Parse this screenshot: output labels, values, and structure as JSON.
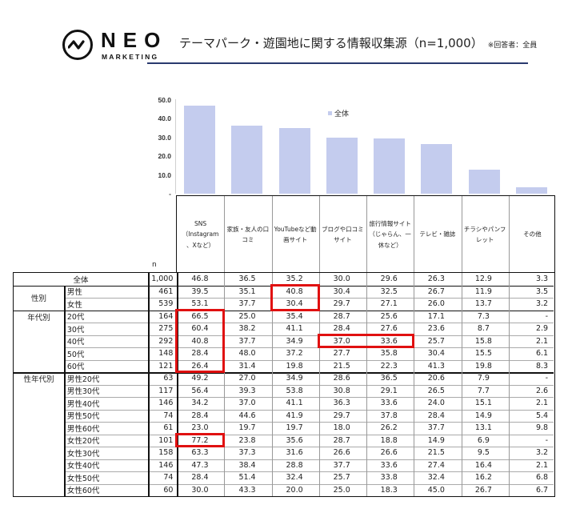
{
  "header": {
    "logo_text": "NEO",
    "logo_subtext": "MARKETING",
    "title": "テーマパーク・遊園地に関する情報収集源（n=1,000）",
    "note": "※回答者：全員"
  },
  "chart_data": {
    "type": "bar",
    "title": "テーマパーク・遊園地に関する情報収集源（n=1,000）",
    "categories": [
      "SNS（Instagram、Xなど）",
      "家族・友人の口コミ",
      "YouTubeなど動画サイト",
      "ブログや口コミサイト",
      "旅行情報サイト（じゃらん、一休など）",
      "テレビ・雑誌",
      "チラシやパンフレット",
      "その他"
    ],
    "series": [
      {
        "name": "全体",
        "values": [
          46.8,
          36.5,
          35.2,
          30.0,
          29.6,
          26.3,
          12.9,
          3.3
        ]
      }
    ],
    "ylim": [
      0,
      50
    ],
    "yticks": [
      "50.0",
      "40.0",
      "30.0",
      "20.0",
      "10.0",
      "-"
    ],
    "legend": "全体",
    "xlabel": "",
    "ylabel": "",
    "grid": false,
    "legend_position": "top-center",
    "table": {
      "columns": [
        "n",
        "SNS（Instagram、Xなど）",
        "家族・友人の口コミ",
        "YouTubeなど動画サイト",
        "ブログや口コミサイト",
        "旅行情報サイト（じゃらん、一休など）",
        "テレビ・雑誌",
        "チラシやパンフレット",
        "その他"
      ],
      "rows": [
        {
          "group": "全体",
          "label": "全体",
          "n": "1,000",
          "values": [
            "46.8",
            "36.5",
            "35.2",
            "30.0",
            "29.6",
            "26.3",
            "12.9",
            "3.3"
          ]
        },
        {
          "group": "性別",
          "label": "男性",
          "n": "461",
          "values": [
            "39.5",
            "35.1",
            "40.8",
            "30.4",
            "32.5",
            "26.7",
            "11.9",
            "3.5"
          ]
        },
        {
          "group": "性別",
          "label": "女性",
          "n": "539",
          "values": [
            "53.1",
            "37.7",
            "30.4",
            "29.7",
            "27.1",
            "26.0",
            "13.7",
            "3.2"
          ]
        },
        {
          "group": "年代別",
          "label": "20代",
          "n": "164",
          "values": [
            "66.5",
            "25.0",
            "35.4",
            "28.7",
            "25.6",
            "17.1",
            "7.3",
            "-"
          ]
        },
        {
          "group": "年代別",
          "label": "30代",
          "n": "275",
          "values": [
            "60.4",
            "38.2",
            "41.1",
            "28.4",
            "27.6",
            "23.6",
            "8.7",
            "2.9"
          ]
        },
        {
          "group": "年代別",
          "label": "40代",
          "n": "292",
          "values": [
            "40.8",
            "37.7",
            "34.9",
            "37.0",
            "33.6",
            "25.7",
            "15.8",
            "2.1"
          ]
        },
        {
          "group": "年代別",
          "label": "50代",
          "n": "148",
          "values": [
            "28.4",
            "48.0",
            "37.2",
            "27.7",
            "35.8",
            "30.4",
            "15.5",
            "6.1"
          ]
        },
        {
          "group": "年代別",
          "label": "60代",
          "n": "121",
          "values": [
            "26.4",
            "31.4",
            "19.8",
            "21.5",
            "22.3",
            "41.3",
            "19.8",
            "8.3"
          ]
        },
        {
          "group": "性年代別",
          "label": "男性20代",
          "n": "63",
          "values": [
            "49.2",
            "27.0",
            "34.9",
            "28.6",
            "36.5",
            "20.6",
            "7.9",
            "-"
          ]
        },
        {
          "group": "性年代別",
          "label": "男性30代",
          "n": "117",
          "values": [
            "56.4",
            "39.3",
            "53.8",
            "30.8",
            "29.1",
            "26.5",
            "7.7",
            "2.6"
          ]
        },
        {
          "group": "性年代別",
          "label": "男性40代",
          "n": "146",
          "values": [
            "34.2",
            "37.0",
            "41.1",
            "36.3",
            "33.6",
            "24.0",
            "15.1",
            "2.1"
          ]
        },
        {
          "group": "性年代別",
          "label": "男性50代",
          "n": "74",
          "values": [
            "28.4",
            "44.6",
            "41.9",
            "29.7",
            "37.8",
            "28.4",
            "14.9",
            "5.4"
          ]
        },
        {
          "group": "性年代別",
          "label": "男性60代",
          "n": "61",
          "values": [
            "23.0",
            "19.7",
            "19.7",
            "18.0",
            "26.2",
            "37.7",
            "13.1",
            "9.8"
          ]
        },
        {
          "group": "性年代別",
          "label": "女性20代",
          "n": "101",
          "values": [
            "77.2",
            "23.8",
            "35.6",
            "28.7",
            "18.8",
            "14.9",
            "6.9",
            "-"
          ]
        },
        {
          "group": "性年代別",
          "label": "女性30代",
          "n": "158",
          "values": [
            "63.3",
            "37.3",
            "31.6",
            "26.6",
            "26.6",
            "21.5",
            "9.5",
            "3.2"
          ]
        },
        {
          "group": "性年代別",
          "label": "女性40代",
          "n": "146",
          "values": [
            "47.3",
            "38.4",
            "28.8",
            "37.7",
            "33.6",
            "27.4",
            "16.4",
            "2.1"
          ]
        },
        {
          "group": "性年代別",
          "label": "女性50代",
          "n": "74",
          "values": [
            "28.4",
            "51.4",
            "32.4",
            "25.7",
            "33.8",
            "32.4",
            "16.2",
            "6.8"
          ]
        },
        {
          "group": "性年代別",
          "label": "女性60代",
          "n": "60",
          "values": [
            "30.0",
            "43.3",
            "20.0",
            "25.0",
            "18.3",
            "45.0",
            "26.7",
            "6.7"
          ]
        }
      ],
      "highlights": [
        {
          "rows": [
            "男性",
            "女性"
          ],
          "column": "YouTubeなど動画サイト"
        },
        {
          "rows": [
            "20代",
            "30代",
            "40代",
            "50代",
            "60代"
          ],
          "column": "SNS（Instagram、Xなど）"
        },
        {
          "rows": [
            "40代"
          ],
          "columns": [
            "ブログや口コミサイト",
            "旅行情報サイト（じゃらん、一休など）"
          ]
        },
        {
          "rows": [
            "女性20代"
          ],
          "column": "SNS（Instagram、Xなど）"
        }
      ],
      "highlight_color": "#e01010"
    }
  },
  "table_ui": {
    "n_label": "n",
    "headers": [
      [
        "SNS",
        "（Instagram",
        "、Xなど）"
      ],
      [
        "家族・友人の口",
        "コミ"
      ],
      [
        "YouTubeなど動",
        "画サイト"
      ],
      [
        "ブログや口コミ",
        "サイト"
      ],
      [
        "旅行情報サイト",
        "（じゃらん、一",
        "休など）"
      ],
      [
        "テレビ・雑誌"
      ],
      [
        "チラシやパンフ",
        "レット"
      ],
      [
        "その他"
      ]
    ],
    "groups": {
      "overall": "全体",
      "gender": "性別",
      "age": "年代別",
      "gender_age": "性年代別"
    }
  },
  "colors": {
    "bar": "#c4ccee",
    "highlight": "#e01010",
    "title_rule": "#2a3a6e"
  }
}
